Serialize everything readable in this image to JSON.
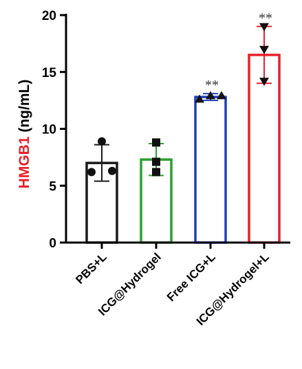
{
  "chart_data": {
    "type": "bar",
    "categories": [
      "PBS+L",
      "ICG@Hydrogel",
      "Free ICG+L",
      "ICG@Hydrogel+L"
    ],
    "values": [
      7.0,
      7.3,
      12.8,
      16.5
    ],
    "error": [
      1.6,
      1.4,
      0.3,
      2.5
    ],
    "points": [
      [
        8.9,
        6.2,
        6.3
      ],
      [
        8.8,
        6.2,
        7.1
      ],
      [
        12.6,
        12.9,
        12.9
      ],
      [
        19.0,
        17.0,
        14.2
      ]
    ],
    "markers": [
      "circle",
      "square",
      "triangle-up",
      "triangle-down"
    ],
    "bar_colors": [
      "#1a1a1a",
      "#2ca02c",
      "#1f3fbf",
      "#e8202a"
    ],
    "significance": [
      "",
      "",
      "**",
      "**"
    ],
    "ylabel_parts": [
      {
        "text": "HMGB1",
        "color": "#e8202a"
      },
      {
        "text": " (ng/mL)",
        "color": "#000000"
      }
    ],
    "yticks": [
      "0",
      "5",
      "10",
      "15",
      "20"
    ],
    "ylim": [
      0,
      20
    ],
    "grid": false
  }
}
